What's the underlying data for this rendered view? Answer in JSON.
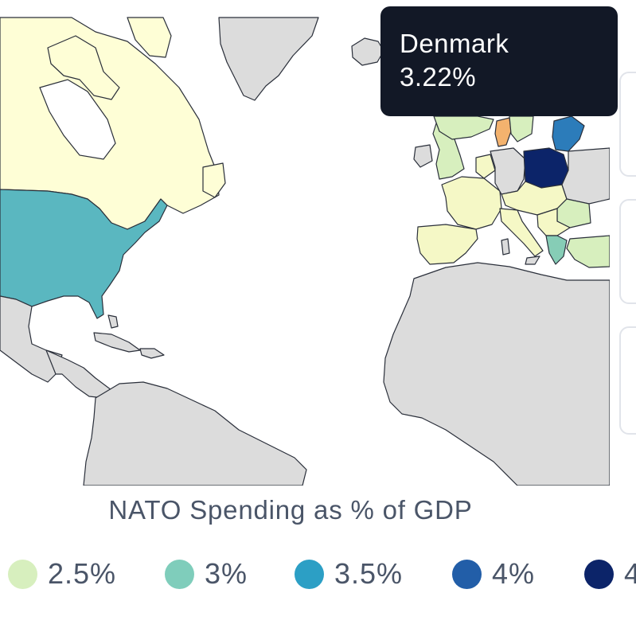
{
  "tooltip": {
    "country": "Denmark",
    "value": "3.22%"
  },
  "legend": {
    "title": "NATO Spending as % of GDP",
    "items": [
      {
        "label": "2.5%",
        "color": "#d7efbe"
      },
      {
        "label": "3%",
        "color": "#7fcdbb"
      },
      {
        "label": "3.5%",
        "color": "#2c9fc5"
      },
      {
        "label": "4%",
        "color": "#225ea8"
      },
      {
        "label": "4",
        "color": "#0c2469"
      }
    ]
  },
  "colors": {
    "canada": "#fefed6",
    "usa": "#5ab7c0",
    "denmark": "#f3b26e",
    "poland": "#0c2469",
    "greece": "#86cdb6",
    "baltics": "#2c7cba",
    "light_nato": "#f5f8c6",
    "mid_nato": "#d7efbe",
    "non_nato": "#dcdcdc"
  }
}
